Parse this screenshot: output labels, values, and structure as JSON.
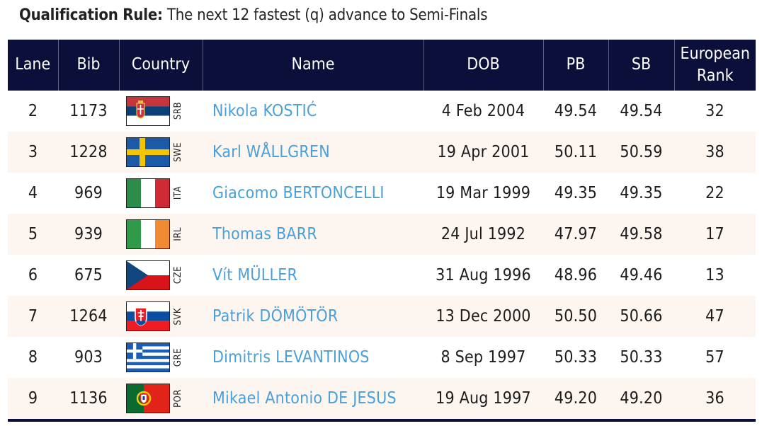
{
  "rule": {
    "label": "Qualification Rule:",
    "text": "The next 12 fastest (q) advance to Semi-Finals"
  },
  "headers": {
    "lane": "Lane",
    "bib": "Bib",
    "country": "Country",
    "name": "Name",
    "dob": "DOB",
    "pb": "PB",
    "sb": "SB",
    "rank_line1": "European",
    "rank_line2": "Rank"
  },
  "rows": [
    {
      "lane": "2",
      "bib": "1173",
      "code": "SRB",
      "flag": "serbia-flag",
      "name": "Nikola KOSTIĆ",
      "dob": "4 Feb 2004",
      "pb": "49.54",
      "sb": "49.54",
      "rank": "32"
    },
    {
      "lane": "3",
      "bib": "1228",
      "code": "SWE",
      "flag": "sweden-flag",
      "name": "Karl WÅLLGREN",
      "dob": "19 Apr 2001",
      "pb": "50.11",
      "sb": "50.59",
      "rank": "38"
    },
    {
      "lane": "4",
      "bib": "969",
      "code": "ITA",
      "flag": "italy-flag",
      "name": "Giacomo BERTONCELLI",
      "dob": "19 Mar 1999",
      "pb": "49.35",
      "sb": "49.35",
      "rank": "22"
    },
    {
      "lane": "5",
      "bib": "939",
      "code": "IRL",
      "flag": "ireland-flag",
      "name": "Thomas BARR",
      "dob": "24 Jul 1992",
      "pb": "47.97",
      "sb": "49.58",
      "rank": "17"
    },
    {
      "lane": "6",
      "bib": "675",
      "code": "CZE",
      "flag": "czechia-flag",
      "name": "Vít MÜLLER",
      "dob": "31 Aug 1996",
      "pb": "48.96",
      "sb": "49.46",
      "rank": "13"
    },
    {
      "lane": "7",
      "bib": "1264",
      "code": "SVK",
      "flag": "slovakia-flag",
      "name": "Patrik DÖMÖTÖR",
      "dob": "13 Dec 2000",
      "pb": "50.50",
      "sb": "50.66",
      "rank": "47"
    },
    {
      "lane": "8",
      "bib": "903",
      "code": "GRE",
      "flag": "greece-flag",
      "name": "Dimitris LEVANTINOS",
      "dob": "8 Sep 1997",
      "pb": "50.33",
      "sb": "50.33",
      "rank": "57"
    },
    {
      "lane": "9",
      "bib": "1136",
      "code": "POR",
      "flag": "portugal-flag",
      "name": "Mikael Antonio DE JESUS",
      "dob": "19 Aug 1997",
      "pb": "49.20",
      "sb": "49.20",
      "rank": "36"
    }
  ],
  "colors": {
    "header_bg": "#0b0f3a",
    "name_link": "#4a9fd8",
    "stripe": "#fcf5f0"
  }
}
